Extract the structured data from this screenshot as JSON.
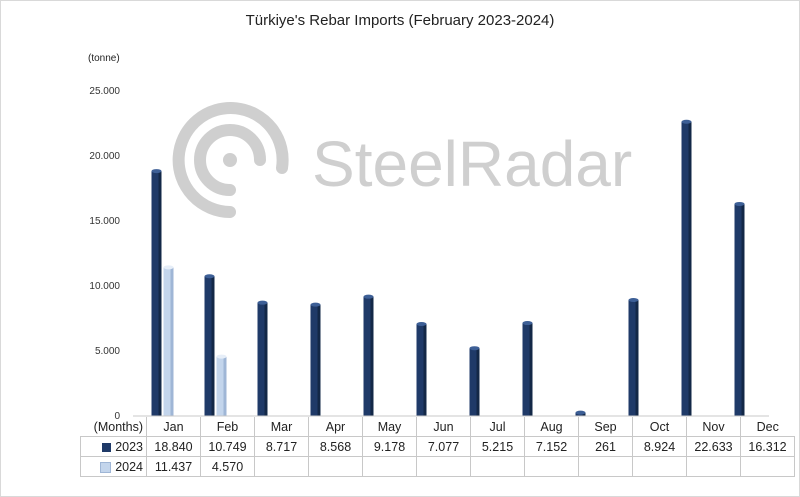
{
  "chart_data": {
    "type": "bar",
    "title": "Türkiye's Rebar Imports (February 2023-2024)",
    "ylabel": "(tonne)",
    "xlabel": "(Months)",
    "ylim": [
      0,
      25000
    ],
    "yticks": [
      "0",
      "5.000",
      "10.000",
      "15.000",
      "20.000",
      "25.000"
    ],
    "categories": [
      "Jan",
      "Feb",
      "Mar",
      "Apr",
      "May",
      "Jun",
      "Jul",
      "Aug",
      "Sep",
      "Oct",
      "Nov",
      "Dec"
    ],
    "series": [
      {
        "name": "2023",
        "color": "#1f3a68",
        "values": [
          18840,
          10749,
          8717,
          8568,
          9178,
          7077,
          5215,
          7152,
          261,
          8924,
          22633,
          16312
        ],
        "labels": [
          "18.840",
          "10.749",
          "8.717",
          "8.568",
          "9.178",
          "7.077",
          "5.215",
          "7.152",
          "261",
          "8.924",
          "22.633",
          "16.312"
        ]
      },
      {
        "name": "2024",
        "color": "#c3d5ec",
        "values": [
          11437,
          4570,
          null,
          null,
          null,
          null,
          null,
          null,
          null,
          null,
          null,
          null
        ],
        "labels": [
          "11.437",
          "4.570",
          "",
          "",
          "",
          "",
          "",
          "",
          "",
          "",
          "",
          ""
        ]
      }
    ],
    "grid": false,
    "legend": "data-table-bottom"
  },
  "watermark": {
    "text": "SteelRadar",
    "icon": "radar-logo-icon"
  }
}
